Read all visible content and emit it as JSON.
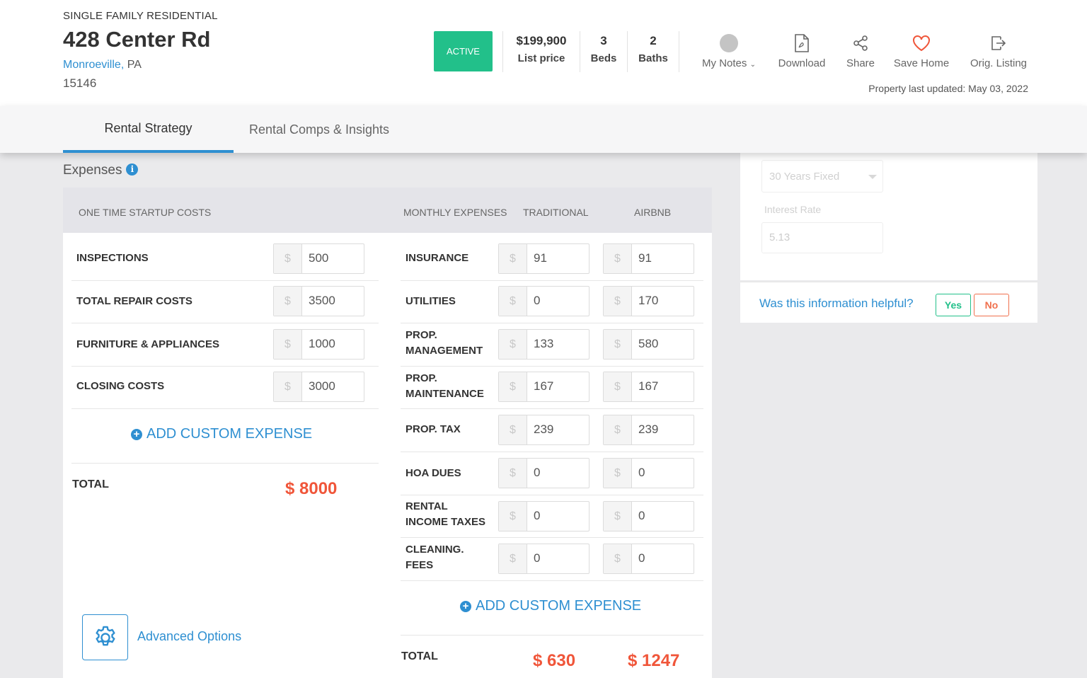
{
  "property": {
    "type": "SINGLE FAMILY RESIDENTIAL",
    "street": "428 Center Rd",
    "city": "Monroeville,",
    "state": "PA",
    "zip": "15146",
    "status": "ACTIVE",
    "price": "$199,900",
    "price_label": "List price",
    "beds": "3",
    "beds_label": "Beds",
    "baths": "2",
    "baths_label": "Baths",
    "last_updated": "Property last updated: May 03, 2022"
  },
  "actions": {
    "notes": "My Notes",
    "download": "Download",
    "share": "Share",
    "save": "Save Home",
    "orig": "Orig. Listing"
  },
  "tabs": [
    "Rental Strategy",
    "Rental Comps & Insights"
  ],
  "mortgage": {
    "loan_type": "30 Years Fixed",
    "interest_label": "Interest Rate",
    "interest_value": "5.13"
  },
  "feedback": {
    "question": "Was this information helpful?",
    "yes": "Yes",
    "no": "No"
  },
  "expenses": {
    "title": "Expenses",
    "currency": "$",
    "startup_header": "ONE TIME STARTUP COSTS",
    "monthly_header": "MONTHLY EXPENSES",
    "traditional_header": "TRADITIONAL",
    "airbnb_header": "AIRBNB",
    "startup": [
      {
        "label": "INSPECTIONS",
        "value": "500"
      },
      {
        "label": "TOTAL REPAIR COSTS",
        "value": "3500"
      },
      {
        "label": "FURNITURE & APPLIANCES",
        "value": "1000"
      },
      {
        "label": "CLOSING COSTS",
        "value": "3000"
      }
    ],
    "monthly": [
      {
        "label1": "INSURANCE",
        "label2": "",
        "traditional": "91",
        "airbnb": "91"
      },
      {
        "label1": "UTILITIES",
        "label2": "",
        "traditional": "0",
        "airbnb": "170"
      },
      {
        "label1": "PROP.",
        "label2": "MANAGEMENT",
        "traditional": "133",
        "airbnb": "580"
      },
      {
        "label1": "PROP.",
        "label2": "MAINTENANCE",
        "traditional": "167",
        "airbnb": "167"
      },
      {
        "label1": "PROP. TAX",
        "label2": "",
        "traditional": "239",
        "airbnb": "239"
      },
      {
        "label1": "HOA DUES",
        "label2": "",
        "traditional": "0",
        "airbnb": "0"
      },
      {
        "label1": "RENTAL",
        "label2": "INCOME TAXES",
        "traditional": "0",
        "airbnb": "0"
      },
      {
        "label1": "CLEANING.",
        "label2": "FEES",
        "traditional": "0",
        "airbnb": "0"
      }
    ],
    "add_custom": "ADD CUSTOM EXPENSE",
    "total_label": "TOTAL",
    "startup_total": "$ 8000",
    "traditional_total": "$ 630",
    "airbnb_total": "$ 1247",
    "advanced": "Advanced Options"
  },
  "colors": {
    "accent": "#2e8fd1",
    "active": "#22c08a",
    "total": "#f0563a",
    "heart": "#f0563a"
  }
}
